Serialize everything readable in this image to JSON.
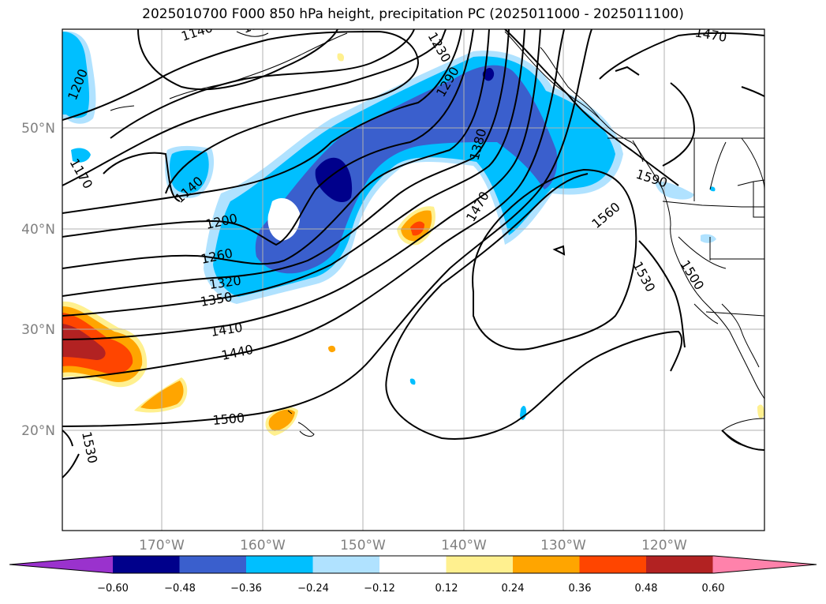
{
  "title": "2025010700 F000 850 hPa height, precipitation PC (2025011000 - 2025011100)",
  "lat_ticks": [
    "50°N",
    "40°N",
    "30°N",
    "20°N"
  ],
  "lon_ticks": [
    "170°W",
    "160°W",
    "150°W",
    "140°W",
    "130°W",
    "120°W"
  ],
  "contour_labels": [
    "1140",
    "1140",
    "1200",
    "1200",
    "1260",
    "1320",
    "1350",
    "1410",
    "1440",
    "1500",
    "1530",
    "1170",
    "1290",
    "1380",
    "1470",
    "1470",
    "1590",
    "1560",
    "1530",
    "1500",
    "1230",
    "1140"
  ],
  "colorbar": {
    "ticks": [
      "−0.60",
      "−0.48",
      "−0.36",
      "−0.24",
      "−0.12",
      "0.12",
      "0.24",
      "0.36",
      "0.48",
      "0.60"
    ],
    "colors": [
      "#9a32cd",
      "#00008b",
      "#3a5fcd",
      "#00bfff",
      "#b0e2ff",
      "#ffffff",
      "#fff08f",
      "#ffa500",
      "#ff4500",
      "#b22222",
      "#ff82ab"
    ]
  }
}
